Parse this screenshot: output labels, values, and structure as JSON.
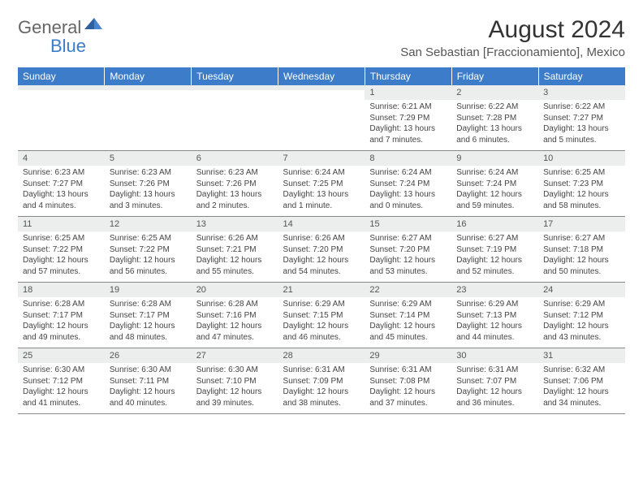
{
  "brand": {
    "general": "General",
    "blue": "Blue"
  },
  "title": "August 2024",
  "location": "San Sebastian [Fraccionamiento], Mexico",
  "colors": {
    "header_bg": "#3d7cc9",
    "daynum_bg": "#eceded",
    "border": "#888888"
  },
  "weekdays": [
    "Sunday",
    "Monday",
    "Tuesday",
    "Wednesday",
    "Thursday",
    "Friday",
    "Saturday"
  ],
  "weeks": [
    [
      {
        "num": "",
        "sunrise": "",
        "sunset": "",
        "daylight": ""
      },
      {
        "num": "",
        "sunrise": "",
        "sunset": "",
        "daylight": ""
      },
      {
        "num": "",
        "sunrise": "",
        "sunset": "",
        "daylight": ""
      },
      {
        "num": "",
        "sunrise": "",
        "sunset": "",
        "daylight": ""
      },
      {
        "num": "1",
        "sunrise": "Sunrise: 6:21 AM",
        "sunset": "Sunset: 7:29 PM",
        "daylight": "Daylight: 13 hours and 7 minutes."
      },
      {
        "num": "2",
        "sunrise": "Sunrise: 6:22 AM",
        "sunset": "Sunset: 7:28 PM",
        "daylight": "Daylight: 13 hours and 6 minutes."
      },
      {
        "num": "3",
        "sunrise": "Sunrise: 6:22 AM",
        "sunset": "Sunset: 7:27 PM",
        "daylight": "Daylight: 13 hours and 5 minutes."
      }
    ],
    [
      {
        "num": "4",
        "sunrise": "Sunrise: 6:23 AM",
        "sunset": "Sunset: 7:27 PM",
        "daylight": "Daylight: 13 hours and 4 minutes."
      },
      {
        "num": "5",
        "sunrise": "Sunrise: 6:23 AM",
        "sunset": "Sunset: 7:26 PM",
        "daylight": "Daylight: 13 hours and 3 minutes."
      },
      {
        "num": "6",
        "sunrise": "Sunrise: 6:23 AM",
        "sunset": "Sunset: 7:26 PM",
        "daylight": "Daylight: 13 hours and 2 minutes."
      },
      {
        "num": "7",
        "sunrise": "Sunrise: 6:24 AM",
        "sunset": "Sunset: 7:25 PM",
        "daylight": "Daylight: 13 hours and 1 minute."
      },
      {
        "num": "8",
        "sunrise": "Sunrise: 6:24 AM",
        "sunset": "Sunset: 7:24 PM",
        "daylight": "Daylight: 13 hours and 0 minutes."
      },
      {
        "num": "9",
        "sunrise": "Sunrise: 6:24 AM",
        "sunset": "Sunset: 7:24 PM",
        "daylight": "Daylight: 12 hours and 59 minutes."
      },
      {
        "num": "10",
        "sunrise": "Sunrise: 6:25 AM",
        "sunset": "Sunset: 7:23 PM",
        "daylight": "Daylight: 12 hours and 58 minutes."
      }
    ],
    [
      {
        "num": "11",
        "sunrise": "Sunrise: 6:25 AM",
        "sunset": "Sunset: 7:22 PM",
        "daylight": "Daylight: 12 hours and 57 minutes."
      },
      {
        "num": "12",
        "sunrise": "Sunrise: 6:25 AM",
        "sunset": "Sunset: 7:22 PM",
        "daylight": "Daylight: 12 hours and 56 minutes."
      },
      {
        "num": "13",
        "sunrise": "Sunrise: 6:26 AM",
        "sunset": "Sunset: 7:21 PM",
        "daylight": "Daylight: 12 hours and 55 minutes."
      },
      {
        "num": "14",
        "sunrise": "Sunrise: 6:26 AM",
        "sunset": "Sunset: 7:20 PM",
        "daylight": "Daylight: 12 hours and 54 minutes."
      },
      {
        "num": "15",
        "sunrise": "Sunrise: 6:27 AM",
        "sunset": "Sunset: 7:20 PM",
        "daylight": "Daylight: 12 hours and 53 minutes."
      },
      {
        "num": "16",
        "sunrise": "Sunrise: 6:27 AM",
        "sunset": "Sunset: 7:19 PM",
        "daylight": "Daylight: 12 hours and 52 minutes."
      },
      {
        "num": "17",
        "sunrise": "Sunrise: 6:27 AM",
        "sunset": "Sunset: 7:18 PM",
        "daylight": "Daylight: 12 hours and 50 minutes."
      }
    ],
    [
      {
        "num": "18",
        "sunrise": "Sunrise: 6:28 AM",
        "sunset": "Sunset: 7:17 PM",
        "daylight": "Daylight: 12 hours and 49 minutes."
      },
      {
        "num": "19",
        "sunrise": "Sunrise: 6:28 AM",
        "sunset": "Sunset: 7:17 PM",
        "daylight": "Daylight: 12 hours and 48 minutes."
      },
      {
        "num": "20",
        "sunrise": "Sunrise: 6:28 AM",
        "sunset": "Sunset: 7:16 PM",
        "daylight": "Daylight: 12 hours and 47 minutes."
      },
      {
        "num": "21",
        "sunrise": "Sunrise: 6:29 AM",
        "sunset": "Sunset: 7:15 PM",
        "daylight": "Daylight: 12 hours and 46 minutes."
      },
      {
        "num": "22",
        "sunrise": "Sunrise: 6:29 AM",
        "sunset": "Sunset: 7:14 PM",
        "daylight": "Daylight: 12 hours and 45 minutes."
      },
      {
        "num": "23",
        "sunrise": "Sunrise: 6:29 AM",
        "sunset": "Sunset: 7:13 PM",
        "daylight": "Daylight: 12 hours and 44 minutes."
      },
      {
        "num": "24",
        "sunrise": "Sunrise: 6:29 AM",
        "sunset": "Sunset: 7:12 PM",
        "daylight": "Daylight: 12 hours and 43 minutes."
      }
    ],
    [
      {
        "num": "25",
        "sunrise": "Sunrise: 6:30 AM",
        "sunset": "Sunset: 7:12 PM",
        "daylight": "Daylight: 12 hours and 41 minutes."
      },
      {
        "num": "26",
        "sunrise": "Sunrise: 6:30 AM",
        "sunset": "Sunset: 7:11 PM",
        "daylight": "Daylight: 12 hours and 40 minutes."
      },
      {
        "num": "27",
        "sunrise": "Sunrise: 6:30 AM",
        "sunset": "Sunset: 7:10 PM",
        "daylight": "Daylight: 12 hours and 39 minutes."
      },
      {
        "num": "28",
        "sunrise": "Sunrise: 6:31 AM",
        "sunset": "Sunset: 7:09 PM",
        "daylight": "Daylight: 12 hours and 38 minutes."
      },
      {
        "num": "29",
        "sunrise": "Sunrise: 6:31 AM",
        "sunset": "Sunset: 7:08 PM",
        "daylight": "Daylight: 12 hours and 37 minutes."
      },
      {
        "num": "30",
        "sunrise": "Sunrise: 6:31 AM",
        "sunset": "Sunset: 7:07 PM",
        "daylight": "Daylight: 12 hours and 36 minutes."
      },
      {
        "num": "31",
        "sunrise": "Sunrise: 6:32 AM",
        "sunset": "Sunset: 7:06 PM",
        "daylight": "Daylight: 12 hours and 34 minutes."
      }
    ]
  ]
}
